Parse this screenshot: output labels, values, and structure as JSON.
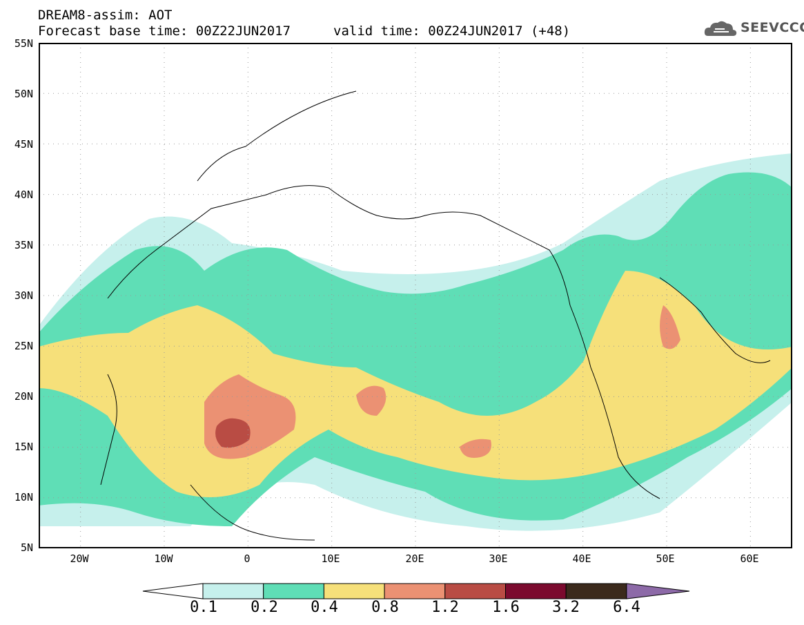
{
  "title": {
    "line1": "DREAM8-assim: AOT",
    "line2": "Forecast base time: 00Z22JUN2017",
    "valid": "valid time: 00Z24JUN2017 (+48)"
  },
  "logo": {
    "text": "SEEVCCC",
    "icon": "cloud-icon"
  },
  "map": {
    "lat_labels": [
      "55N",
      "50N",
      "45N",
      "40N",
      "35N",
      "30N",
      "25N",
      "20N",
      "15N",
      "10N",
      "5N"
    ],
    "lon_labels": [
      "20W",
      "10W",
      "0",
      "10E",
      "20E",
      "30E",
      "40E",
      "50E",
      "60E"
    ],
    "lat_range": [
      5,
      55
    ],
    "lon_range": [
      -25,
      65
    ],
    "grid": true
  },
  "colorbar": {
    "labels": [
      "0.1",
      "0.2",
      "0.4",
      "0.8",
      "1.2",
      "1.6",
      "3.2",
      "6.4"
    ],
    "colors": [
      "#ffffff",
      "#c6f0ec",
      "#5fdeb6",
      "#f6e07a",
      "#eb9173",
      "#b94c44",
      "#7b0a2e",
      "#3b2a1c",
      "#8d6aa8"
    ]
  }
}
